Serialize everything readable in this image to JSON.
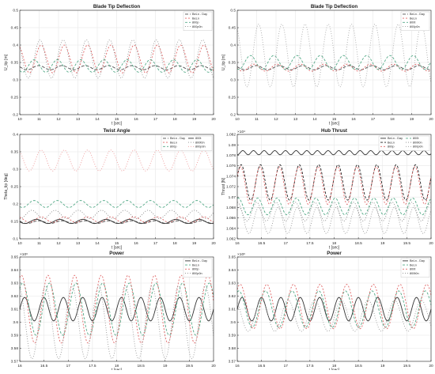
{
  "chart_data": [
    {
      "type": "line",
      "title": "Blade Tip Deflection",
      "xlabel": "t [sec]",
      "ylabel": "U_tip [m]",
      "exponent": "",
      "xlim": [
        10,
        20
      ],
      "ylim": [
        0.2,
        0.5
      ],
      "xticks": [
        "10",
        "11",
        "12",
        "13",
        "14",
        "15",
        "16",
        "17",
        "18",
        "19",
        "20"
      ],
      "yticks": [
        "0.2",
        "0.25",
        "0.3",
        "0.35",
        "0.4",
        "0.45",
        "0.5"
      ],
      "grid": true,
      "legend_placement": "top-right",
      "legend": [
        "BeLn - Day",
        "BeLn",
        "800p",
        "800p0n"
      ],
      "series": [
        {
          "name": "BeLn - Day",
          "color": "#4d4d4d",
          "dash": "4,2",
          "mean": 0.335,
          "amp": 0.006,
          "period": 1.2,
          "phase": 0.1
        },
        {
          "name": "BeLn",
          "color": "#e06666",
          "dash": "2,2",
          "mean": 0.36,
          "amp": 0.04,
          "period": 1.2,
          "phase": 0.0
        },
        {
          "name": "800p",
          "color": "#55aa88",
          "dash": "3,2",
          "mean": 0.34,
          "amp": 0.018,
          "period": 1.2,
          "phase": 0.3
        },
        {
          "name": "800p0n",
          "color": "#999999",
          "dash": "1,2",
          "mean": 0.36,
          "amp": 0.055,
          "period": 1.2,
          "phase": 0.05
        }
      ]
    },
    {
      "type": "line",
      "title": "Blade Tip Deflection",
      "xlabel": "t [sec]",
      "ylabel": "U_tip [m]",
      "exponent": "",
      "xlim": [
        10,
        20
      ],
      "ylim": [
        0.2,
        0.5
      ],
      "xticks": [
        "10",
        "11",
        "12",
        "13",
        "14",
        "15",
        "16",
        "17",
        "18",
        "19",
        "20"
      ],
      "yticks": [
        "0.2",
        "0.25",
        "0.3",
        "0.35",
        "0.4",
        "0.45",
        "0.5"
      ],
      "grid": true,
      "legend_placement": "top-right",
      "legend": [
        "BeLn - Day",
        "BeLn",
        "800t",
        "800p0n"
      ],
      "series": [
        {
          "name": "BeLn - Day",
          "color": "#4d4d4d",
          "dash": "4,2",
          "mean": 0.335,
          "amp": 0.006,
          "period": 1.2,
          "phase": 0.1
        },
        {
          "name": "BeLn",
          "color": "#e06666",
          "dash": "2,2",
          "mean": 0.335,
          "amp": 0.01,
          "period": 1.2,
          "phase": 0.2
        },
        {
          "name": "800t",
          "color": "#55aa88",
          "dash": "3,2",
          "mean": 0.35,
          "amp": 0.02,
          "period": 1.2,
          "phase": 0.35
        },
        {
          "name": "800p0n",
          "color": "#aaaaaa",
          "dash": "1,2",
          "mean": 0.37,
          "amp": 0.09,
          "period": 1.2,
          "phase": 0.0
        }
      ]
    },
    {
      "type": "line",
      "title": "Twist Angle",
      "xlabel": "t [sec]",
      "ylabel": "Theta_tip [deg]",
      "exponent": "",
      "xlim": [
        10,
        20
      ],
      "ylim": [
        0.1,
        0.4
      ],
      "xticks": [
        "10",
        "11",
        "12",
        "13",
        "14",
        "15",
        "16",
        "17",
        "18",
        "19",
        "20"
      ],
      "yticks": [
        "0.1",
        "0.15",
        "0.2",
        "0.25",
        "0.3",
        "0.35",
        "0.4"
      ],
      "grid": true,
      "legend_placement": "top-right",
      "legend": [
        "BeLn - Day",
        "BeLn",
        "800p",
        "800t",
        "800t0n",
        "800p0n"
      ],
      "series": [
        {
          "name": "BeLn - Day",
          "color": "#4d4d4d",
          "dash": "4,2",
          "mean": 0.148,
          "amp": 0.004,
          "period": 1.2,
          "phase": 0.1
        },
        {
          "name": "BeLn",
          "color": "#e06666",
          "dash": "2,2",
          "mean": 0.155,
          "amp": 0.008,
          "period": 1.2,
          "phase": 0.0
        },
        {
          "name": "800p",
          "color": "#55aa88",
          "dash": "3,2",
          "mean": 0.2,
          "amp": 0.01,
          "period": 1.2,
          "phase": 0.3
        },
        {
          "name": "800t",
          "color": "#333333",
          "dash": "",
          "mean": 0.15,
          "amp": 0.006,
          "period": 1.2,
          "phase": 0.2
        },
        {
          "name": "800t0n",
          "color": "#888888",
          "dash": "1,2",
          "mean": 0.17,
          "amp": 0.012,
          "period": 1.2,
          "phase": 0.4
        },
        {
          "name": "800p0n",
          "color": "#ee9999",
          "dash": "1,2",
          "mean": 0.325,
          "amp": 0.03,
          "period": 1.2,
          "phase": 0.0
        }
      ]
    },
    {
      "type": "line",
      "title": "Hub Thrust",
      "xlabel": "t [sec]",
      "ylabel": "Thrust [N]",
      "exponent": "×10⁴",
      "xlim": [
        16,
        20
      ],
      "ylim": [
        1.062,
        1.082
      ],
      "xticks": [
        "16",
        "16.5",
        "17",
        "17.5",
        "18",
        "18.5",
        "19",
        "19.5",
        "20"
      ],
      "yticks": [
        "1.062",
        "1.064",
        "1.066",
        "1.068",
        "1.07",
        "1.072",
        "1.074",
        "1.076",
        "1.078",
        "1.08",
        "1.082"
      ],
      "grid": true,
      "legend_placement": "top-right",
      "legend": [
        "BeLn - Day",
        "BeLn",
        "800p",
        "800t",
        "800t0n",
        "800p0n"
      ],
      "series": [
        {
          "name": "BeLn - Day",
          "color": "#333333",
          "dash": "",
          "mean": 1.0785,
          "amp": 0.0004,
          "period": 0.22,
          "phase": 0.0
        },
        {
          "name": "BeLn",
          "color": "#222222",
          "dash": "3,2",
          "mean": 1.0728,
          "amp": 0.0034,
          "period": 0.4,
          "phase": 0.05
        },
        {
          "name": "800p",
          "color": "#e06666",
          "dash": "2,2",
          "mean": 1.0722,
          "amp": 0.0036,
          "period": 0.4,
          "phase": 0.08
        },
        {
          "name": "800t",
          "color": "#55aa88",
          "dash": "3,2",
          "mean": 1.0682,
          "amp": 0.0016,
          "period": 0.4,
          "phase": 0.2
        },
        {
          "name": "800t0n",
          "color": "#888888",
          "dash": "1,2",
          "mean": 1.0672,
          "amp": 0.0018,
          "period": 0.4,
          "phase": 0.25
        },
        {
          "name": "800p0n",
          "color": "#999999",
          "dash": "1,2",
          "mean": 1.0655,
          "amp": 0.0025,
          "period": 0.4,
          "phase": 0.15
        }
      ]
    },
    {
      "type": "line",
      "title": "Power",
      "xlabel": "t [sec]",
      "ylabel": "",
      "exponent": "×10⁶",
      "xlim": [
        16,
        20
      ],
      "ylim": [
        3.57,
        3.65
      ],
      "xticks": [
        "16",
        "16.5",
        "17",
        "17.5",
        "18",
        "18.5",
        "19",
        "19.5",
        "20"
      ],
      "yticks": [
        "3.57",
        "3.58",
        "3.59",
        "3.6",
        "3.61",
        "3.62",
        "3.63",
        "3.64",
        "3.65"
      ],
      "grid": true,
      "legend_placement": "top-right",
      "legend": [
        "BeLn - Day",
        "BeLn",
        "800p",
        "800p0n"
      ],
      "series": [
        {
          "name": "BeLn - Day",
          "color": "#333333",
          "dash": "",
          "mean": 3.61,
          "amp": 0.009,
          "period": 0.4,
          "phase": 0.0
        },
        {
          "name": "BeLn",
          "color": "#55aa88",
          "dash": "3,2",
          "mean": 3.61,
          "amp": 0.02,
          "period": 0.55,
          "phase": 0.05
        },
        {
          "name": "800p",
          "color": "#e06666",
          "dash": "2,2",
          "mean": 3.61,
          "amp": 0.026,
          "period": 0.55,
          "phase": 0.1
        },
        {
          "name": "800p0n",
          "color": "#999999",
          "dash": "1,2",
          "mean": 3.6,
          "amp": 0.028,
          "period": 0.55,
          "phase": 0.2
        }
      ]
    },
    {
      "type": "line",
      "title": "Power",
      "xlabel": "t [sec]",
      "ylabel": "",
      "exponent": "×10⁶",
      "xlim": [
        16,
        20
      ],
      "ylim": [
        3.57,
        3.65
      ],
      "xticks": [
        "16",
        "16.5",
        "17",
        "17.5",
        "18",
        "18.5",
        "19",
        "19.5",
        "20"
      ],
      "yticks": [
        "3.57",
        "3.58",
        "3.59",
        "3.6",
        "3.61",
        "3.62",
        "3.63",
        "3.64",
        "3.65"
      ],
      "grid": true,
      "legend_placement": "top-right",
      "legend": [
        "BeLn - Day",
        "BeLn",
        "800t",
        "800t0n"
      ],
      "series": [
        {
          "name": "BeLn - Day",
          "color": "#333333",
          "dash": "",
          "mean": 3.61,
          "amp": 0.009,
          "period": 0.4,
          "phase": 0.0
        },
        {
          "name": "BeLn",
          "color": "#55aa88",
          "dash": "3,2",
          "mean": 3.61,
          "amp": 0.014,
          "period": 0.55,
          "phase": 0.1
        },
        {
          "name": "800t",
          "color": "#e06666",
          "dash": "2,2",
          "mean": 3.612,
          "amp": 0.017,
          "period": 0.55,
          "phase": 0.05
        },
        {
          "name": "800t0n",
          "color": "#999999",
          "dash": "1,2",
          "mean": 3.605,
          "amp": 0.012,
          "period": 0.55,
          "phase": 0.25
        }
      ]
    }
  ]
}
